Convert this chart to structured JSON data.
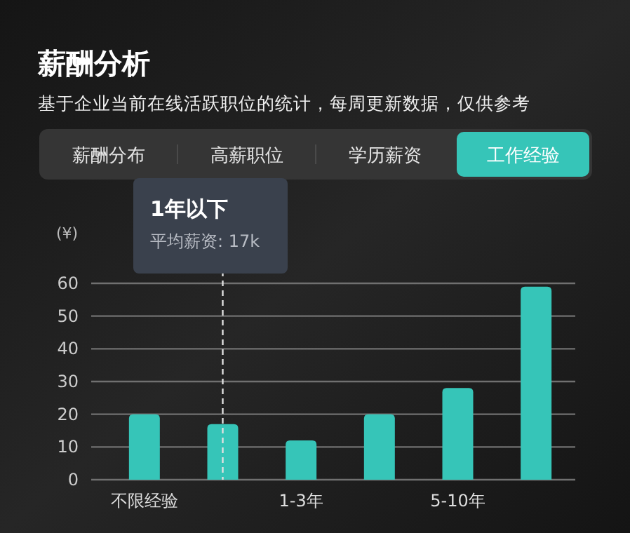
{
  "chart_data": {
    "type": "bar",
    "title": "薪酬分析",
    "subtitle": "基于企业当前在线活跃职位的统计，每周更新数据，仅供参考",
    "ylabel": "(¥)",
    "annotations": [
      "薪酬分布",
      "高薪职位",
      "学历薪资",
      "工作经验",
      "1年以下",
      "平均薪资: 17k"
    ],
    "categories": [
      "不限经验",
      null,
      "1-3年",
      null,
      "5-10年",
      null
    ],
    "values": [
      20,
      17,
      12,
      20,
      28,
      59
    ],
    "color": "#36c5b8",
    "ylim": [
      0,
      60
    ],
    "yticks": [
      0,
      10,
      20,
      30,
      40,
      50,
      60
    ],
    "grid": "y"
  }
}
